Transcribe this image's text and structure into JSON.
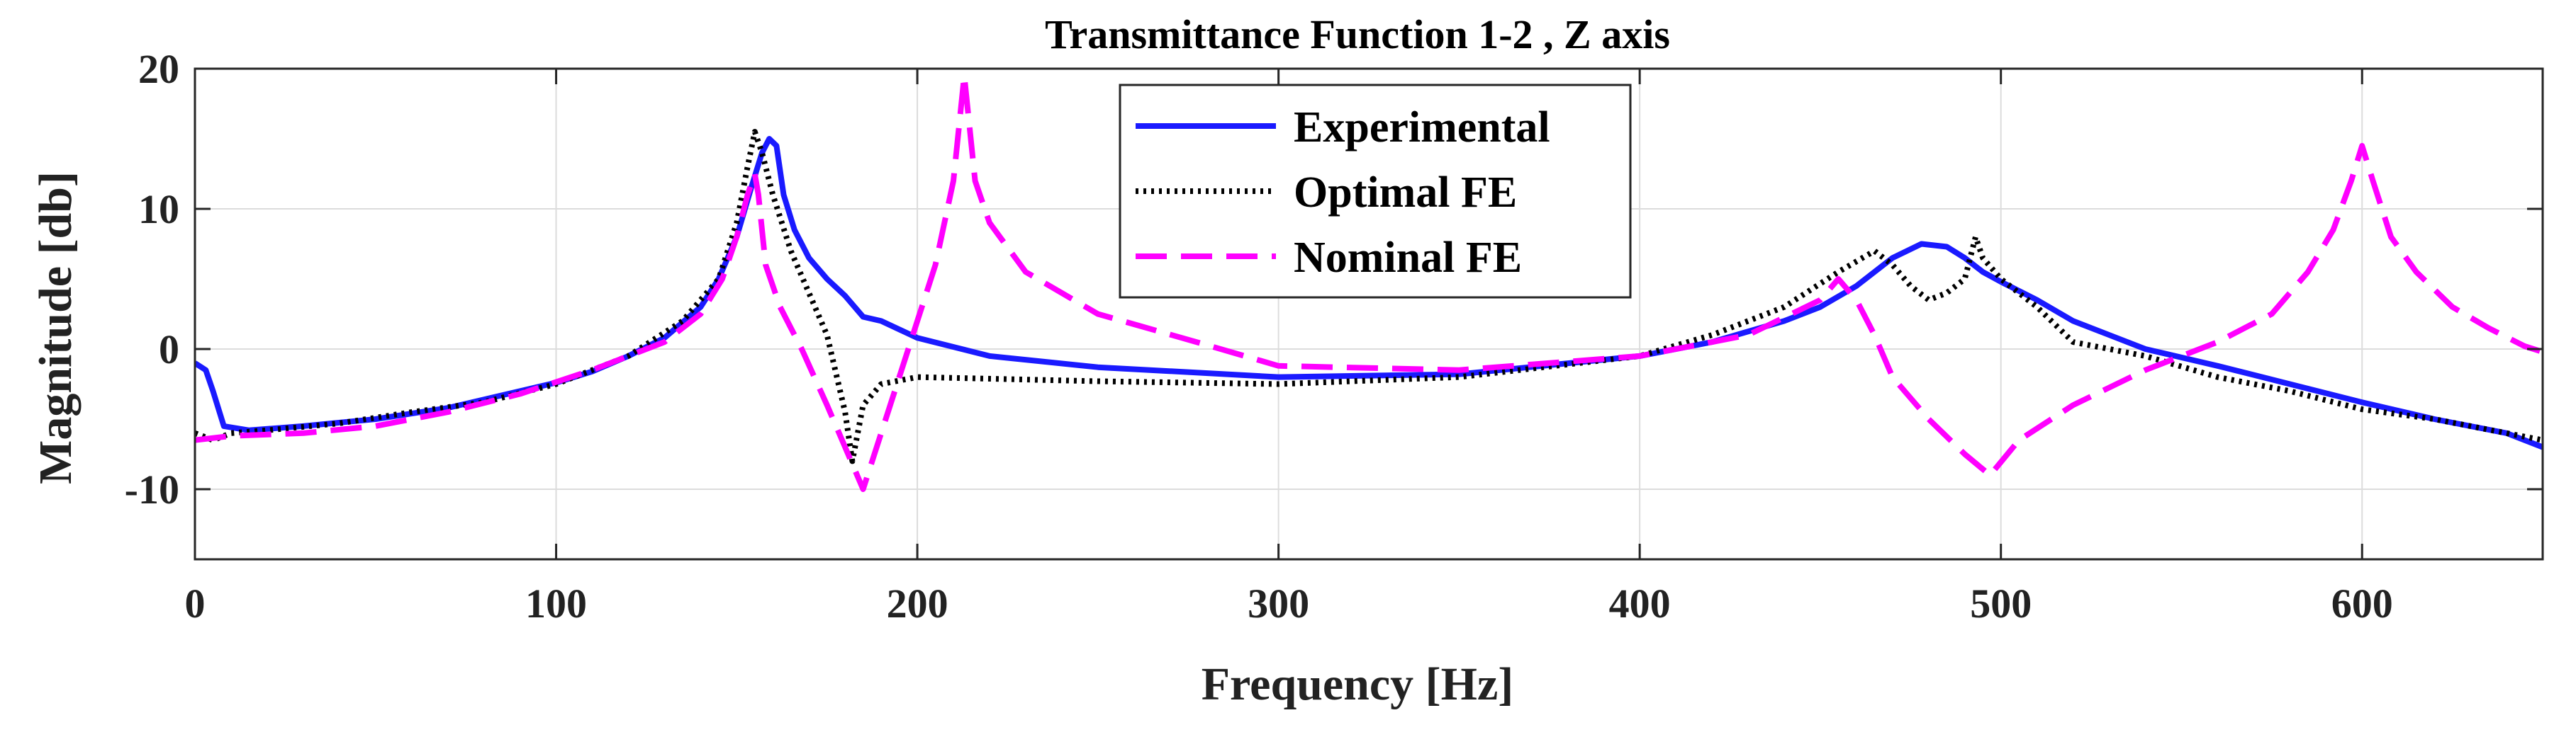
{
  "chart_data": {
    "type": "line",
    "title": "Transmittance Function 1-2 , Z axis",
    "xlabel": "Frequency [Hz]",
    "ylabel": "Magnitude [db]",
    "xlim": [
      0,
      650
    ],
    "ylim": [
      -15,
      20
    ],
    "xticks": [
      0,
      100,
      200,
      300,
      400,
      500,
      600
    ],
    "yticks": [
      -10,
      0,
      10,
      20
    ],
    "xtick_labels": [
      "0",
      "100",
      "200",
      "300",
      "400",
      "500",
      "600"
    ],
    "ytick_labels": [
      "-10",
      "0",
      "10",
      "20"
    ],
    "grid": true,
    "legend_position": "top-center",
    "series": [
      {
        "name": "Experimental",
        "color": "#1a1aff",
        "dash": "solid",
        "x": [
          0,
          3,
          5,
          8,
          15,
          30,
          50,
          70,
          90,
          100,
          110,
          120,
          130,
          140,
          145,
          150,
          154,
          157,
          159,
          161,
          163,
          166,
          170,
          175,
          180,
          185,
          190,
          200,
          220,
          250,
          300,
          350,
          400,
          420,
          440,
          450,
          460,
          470,
          478,
          485,
          490,
          495,
          500,
          510,
          520,
          530,
          540,
          560,
          580,
          600,
          620,
          640,
          650
        ],
        "y": [
          -1,
          -1.5,
          -3,
          -5.5,
          -5.8,
          -5.5,
          -5,
          -4.2,
          -3,
          -2.4,
          -1.6,
          -0.5,
          0.8,
          3,
          5,
          8,
          11.5,
          14,
          15,
          14.5,
          11,
          8.5,
          6.5,
          5,
          3.8,
          2.3,
          2,
          0.8,
          -0.5,
          -1.3,
          -2,
          -1.8,
          -0.5,
          0.5,
          2,
          3,
          4.5,
          6.5,
          7.5,
          7.3,
          6.5,
          5.5,
          4.8,
          3.5,
          2,
          1,
          0,
          -1.2,
          -2.5,
          -3.8,
          -5,
          -6,
          -7
        ]
      },
      {
        "name": "Optimal FE",
        "color": "#000000",
        "dash": "dotted",
        "x": [
          0,
          5,
          10,
          20,
          40,
          60,
          80,
          100,
          120,
          135,
          145,
          150,
          153,
          155,
          157,
          160,
          165,
          170,
          175,
          180,
          182,
          185,
          190,
          200,
          250,
          300,
          350,
          400,
          420,
          440,
          455,
          465,
          470,
          475,
          480,
          485,
          490,
          493,
          495,
          500,
          510,
          520,
          540,
          560,
          580,
          600,
          620,
          640,
          650
        ],
        "y": [
          -6,
          -6.5,
          -6,
          -5.8,
          -5.3,
          -4.5,
          -3.8,
          -2.5,
          -0.5,
          2,
          5,
          9,
          13,
          15.5,
          14,
          11,
          7,
          4,
          1,
          -4.5,
          -8,
          -4,
          -2.5,
          -2,
          -2.3,
          -2.5,
          -2,
          -0.5,
          1,
          3,
          5.5,
          7,
          6,
          4.5,
          3.5,
          4,
          5,
          8,
          6.5,
          5,
          3,
          0.5,
          -0.5,
          -2,
          -3,
          -4.3,
          -5,
          -6,
          -6.5
        ]
      },
      {
        "name": "Nominal FE",
        "color": "#ff00ff",
        "dash": "dashed",
        "x": [
          0,
          10,
          30,
          50,
          70,
          90,
          110,
          130,
          140,
          146,
          150,
          153,
          155,
          156,
          158,
          162,
          168,
          175,
          180,
          185,
          190,
          195,
          200,
          205,
          210,
          213,
          216,
          220,
          230,
          250,
          280,
          300,
          350,
          400,
          430,
          450,
          455,
          460,
          465,
          470,
          480,
          490,
          497,
          505,
          520,
          540,
          560,
          575,
          585,
          592,
          597,
          600,
          603,
          608,
          615,
          625,
          635,
          645,
          650
        ],
        "y": [
          -6.5,
          -6.2,
          -6,
          -5.5,
          -4.5,
          -3.2,
          -1.5,
          0.5,
          2.5,
          5,
          8,
          11,
          12.5,
          11,
          6,
          3,
          0,
          -4,
          -7,
          -10,
          -6,
          -2,
          2,
          6,
          12,
          19.5,
          12,
          9,
          5.5,
          2.5,
          0.3,
          -1.2,
          -1.5,
          -0.5,
          1,
          3.5,
          5,
          3.5,
          1,
          -2,
          -5,
          -7.5,
          -9,
          -6.5,
          -4,
          -1.5,
          0.5,
          2.5,
          5.5,
          8.5,
          12,
          14.5,
          12,
          8,
          5.5,
          3,
          1.5,
          0.2,
          -0.2
        ]
      }
    ]
  }
}
